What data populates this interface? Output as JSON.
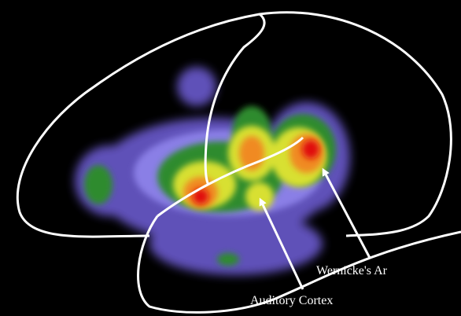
{
  "labels": {
    "wernicke": "Wernicke's Ar",
    "auditory": "Auditory Cortex"
  }
}
